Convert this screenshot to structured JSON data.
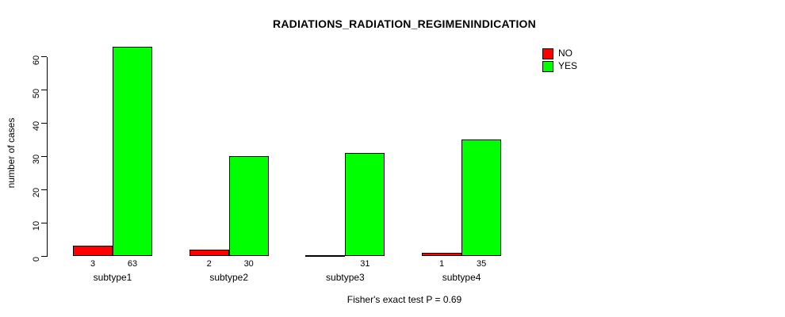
{
  "chart_data": {
    "type": "bar",
    "title": "RADIATIONS_RADIATION_REGIMENINDICATION",
    "xlabel": "",
    "ylabel": "number of cases",
    "ylim": [
      0,
      63
    ],
    "yticks": [
      0,
      10,
      20,
      30,
      40,
      50,
      60
    ],
    "grid": false,
    "legend_position": "top-right",
    "categories": [
      "subtype1",
      "subtype2",
      "subtype3",
      "subtype4"
    ],
    "series": [
      {
        "name": "NO",
        "color": "#ff0000",
        "values": [
          3,
          2,
          0,
          1
        ],
        "bar_labels": [
          "3",
          "2",
          "",
          "1"
        ]
      },
      {
        "name": "YES",
        "color": "#00ff00",
        "values": [
          63,
          30,
          31,
          35
        ],
        "bar_labels": [
          "63",
          "30",
          "31",
          "35"
        ]
      }
    ],
    "annotation": "Fisher's exact test P = 0.69"
  }
}
